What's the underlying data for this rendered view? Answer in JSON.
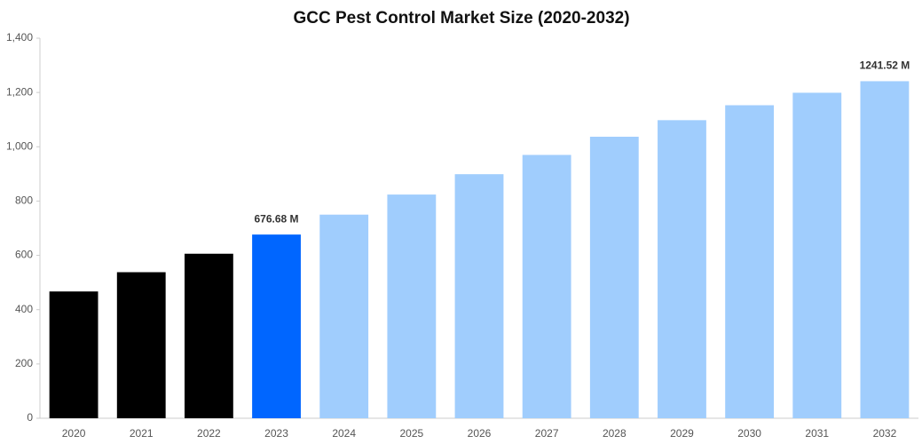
{
  "chart_data": {
    "type": "bar",
    "title": "GCC Pest Control Market Size (2020-2032)",
    "categories": [
      "2020",
      "2021",
      "2022",
      "2023",
      "2024",
      "2025",
      "2026",
      "2027",
      "2028",
      "2029",
      "2030",
      "2031",
      "2032"
    ],
    "values": [
      467,
      538,
      606,
      676.68,
      750,
      824,
      899,
      970,
      1037,
      1098,
      1153,
      1199,
      1241.52
    ],
    "value_labels": [
      null,
      null,
      null,
      "676.68 M",
      null,
      null,
      null,
      null,
      null,
      null,
      null,
      null,
      "1241.52 M"
    ],
    "colors": [
      "#000000",
      "#000000",
      "#000000",
      "#0066ff",
      "#a0cdfd",
      "#a0cdfd",
      "#a0cdfd",
      "#a0cdfd",
      "#a0cdfd",
      "#a0cdfd",
      "#a0cdfd",
      "#a0cdfd",
      "#a0cdfd"
    ],
    "ylim": [
      0,
      1400
    ],
    "yticks": [
      0,
      200,
      400,
      600,
      800,
      {
        "value": 1000,
        "label": "1,000"
      },
      {
        "value": 1200,
        "label": "1,200"
      },
      {
        "value": 1400,
        "label": "1,400"
      }
    ],
    "grid": false
  }
}
